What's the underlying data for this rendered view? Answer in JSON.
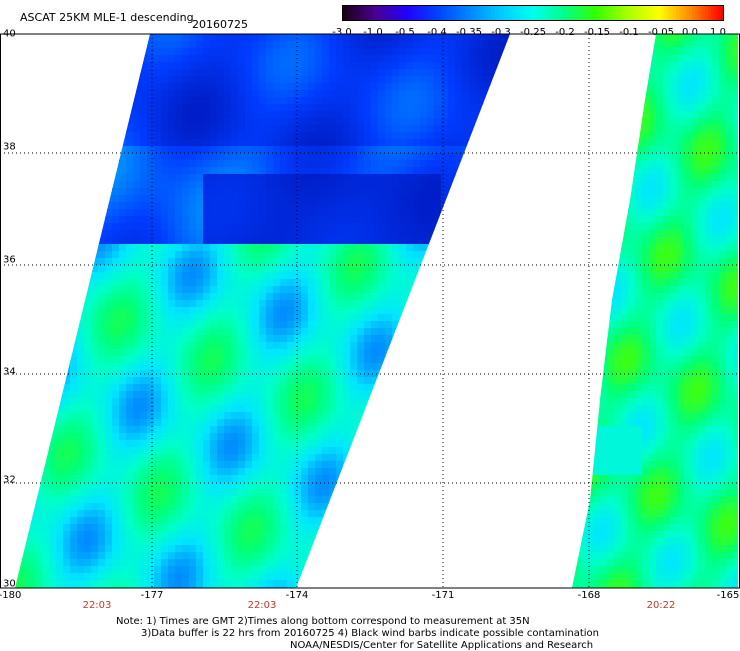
{
  "header": {
    "title": "ASCAT 25KM MLE-1 descending",
    "date": "20160725"
  },
  "colorbar": {
    "labels": [
      "-3.0",
      "-1.0",
      "-0.5",
      "-0.4",
      "-0.35",
      "-0.3",
      "-0.25",
      "-0.2",
      "-0.15",
      "-0.1",
      "-0.05",
      "0.0",
      "1.0"
    ],
    "colors": [
      "#1a0015",
      "#4a0090",
      "#2200ff",
      "#0044ff",
      "#0088ff",
      "#00ccff",
      "#00ffee",
      "#00ff88",
      "#33ff00",
      "#aaff00",
      "#ffff00",
      "#ff8800",
      "#ff0000"
    ]
  },
  "map": {
    "lat_labels": [
      "40",
      "38",
      "36",
      "34",
      "32",
      "30"
    ],
    "lon_labels": [
      "-180",
      "-177",
      "-174",
      "-171",
      "-168",
      "-165"
    ],
    "time_labels": [
      "22:03",
      "22:03",
      "20:22"
    ],
    "time_color": "#c0392b"
  },
  "notes": {
    "line1": "Note: 1) Times are GMT 2)Times along bottom correspond to measurement at 35N",
    "line2": "3)Data buffer is 22 hrs from 20160725 4) Black wind barbs indicate possible contamination",
    "line3": "NOAA/NESDIS/Center for Satellite Applications and Research"
  }
}
